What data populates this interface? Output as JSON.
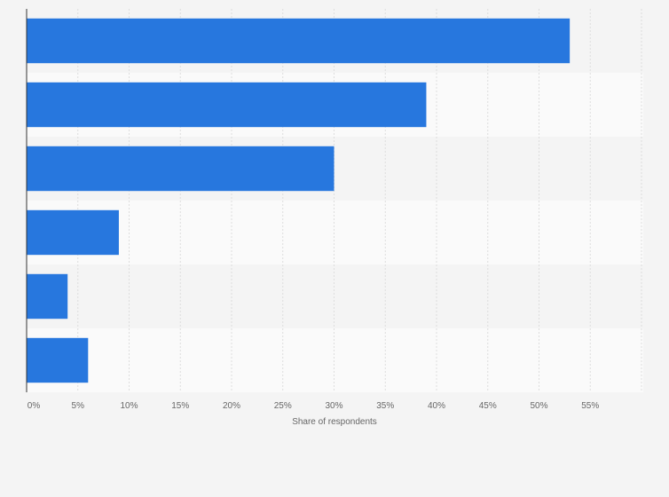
{
  "chart_data": {
    "type": "bar",
    "orientation": "horizontal",
    "categories": [
      "",
      "",
      "",
      "",
      "",
      ""
    ],
    "values": [
      53,
      39,
      30,
      9,
      4,
      6
    ],
    "title": "",
    "xlabel": "Share of respondents",
    "ylabel": "",
    "xlim": [
      0,
      60
    ],
    "x_ticks": [
      0,
      5,
      10,
      15,
      20,
      25,
      30,
      35,
      40,
      45,
      50,
      55
    ],
    "x_tick_labels": [
      "0%",
      "5%",
      "10%",
      "15%",
      "20%",
      "25%",
      "30%",
      "35%",
      "40%",
      "45%",
      "50%",
      "55%"
    ],
    "grid": true,
    "bar_color": "#2777de",
    "band_colors": [
      "#f4f4f4",
      "#fafafa"
    ],
    "grid_color": "#dddddd",
    "axis_color": "#333333"
  }
}
